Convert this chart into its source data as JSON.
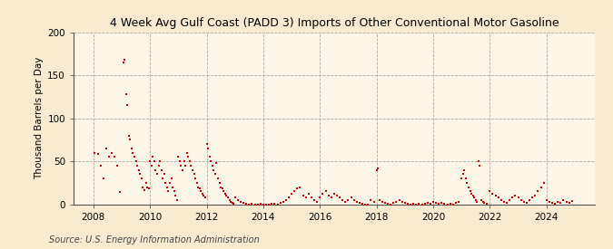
{
  "title": "4 Week Avg Gulf Coast (PADD 3) Imports of Other Conventional Motor Gasoline",
  "ylabel": "Thousand Barrels per Day",
  "source": "Source: U.S. Energy Information Administration",
  "bg_color": "#faebd0",
  "plot_bg_color": "#fdf5e6",
  "dot_color": "#cc0000",
  "ylim": [
    0,
    200
  ],
  "yticks": [
    0,
    50,
    100,
    150,
    200
  ],
  "xlim_start": 2007.3,
  "xlim_end": 2025.7,
  "xticks": [
    2008,
    2010,
    2012,
    2014,
    2016,
    2018,
    2020,
    2022,
    2024
  ],
  "data": [
    [
      2008.05,
      60
    ],
    [
      2008.15,
      58
    ],
    [
      2008.25,
      45
    ],
    [
      2008.35,
      30
    ],
    [
      2008.45,
      65
    ],
    [
      2008.55,
      55
    ],
    [
      2008.65,
      60
    ],
    [
      2008.75,
      55
    ],
    [
      2008.85,
      45
    ],
    [
      2008.95,
      14
    ],
    [
      2009.05,
      165
    ],
    [
      2009.1,
      168
    ],
    [
      2009.15,
      128
    ],
    [
      2009.2,
      115
    ],
    [
      2009.25,
      80
    ],
    [
      2009.3,
      75
    ],
    [
      2009.35,
      65
    ],
    [
      2009.4,
      60
    ],
    [
      2009.45,
      55
    ],
    [
      2009.5,
      50
    ],
    [
      2009.55,
      45
    ],
    [
      2009.6,
      40
    ],
    [
      2009.65,
      35
    ],
    [
      2009.7,
      30
    ],
    [
      2009.75,
      20
    ],
    [
      2009.8,
      16
    ],
    [
      2009.85,
      25
    ],
    [
      2009.9,
      20
    ],
    [
      2009.95,
      18
    ],
    [
      2010.0,
      50
    ],
    [
      2010.05,
      45
    ],
    [
      2010.1,
      55
    ],
    [
      2010.15,
      50
    ],
    [
      2010.2,
      40
    ],
    [
      2010.25,
      35
    ],
    [
      2010.3,
      45
    ],
    [
      2010.35,
      50
    ],
    [
      2010.4,
      40
    ],
    [
      2010.45,
      30
    ],
    [
      2010.5,
      35
    ],
    [
      2010.55,
      25
    ],
    [
      2010.6,
      20
    ],
    [
      2010.65,
      15
    ],
    [
      2010.7,
      25
    ],
    [
      2010.75,
      30
    ],
    [
      2010.8,
      20
    ],
    [
      2010.85,
      15
    ],
    [
      2010.9,
      10
    ],
    [
      2010.95,
      5
    ],
    [
      2011.0,
      55
    ],
    [
      2011.05,
      50
    ],
    [
      2011.1,
      45
    ],
    [
      2011.15,
      40
    ],
    [
      2011.2,
      50
    ],
    [
      2011.25,
      45
    ],
    [
      2011.3,
      60
    ],
    [
      2011.35,
      55
    ],
    [
      2011.4,
      50
    ],
    [
      2011.45,
      45
    ],
    [
      2011.5,
      40
    ],
    [
      2011.55,
      35
    ],
    [
      2011.6,
      30
    ],
    [
      2011.65,
      25
    ],
    [
      2011.7,
      20
    ],
    [
      2011.75,
      18
    ],
    [
      2011.8,
      15
    ],
    [
      2011.85,
      12
    ],
    [
      2011.9,
      10
    ],
    [
      2011.95,
      8
    ],
    [
      2012.0,
      70
    ],
    [
      2012.05,
      65
    ],
    [
      2012.1,
      55
    ],
    [
      2012.15,
      50
    ],
    [
      2012.2,
      45
    ],
    [
      2012.25,
      40
    ],
    [
      2012.3,
      35
    ],
    [
      2012.35,
      48
    ],
    [
      2012.4,
      30
    ],
    [
      2012.45,
      25
    ],
    [
      2012.5,
      20
    ],
    [
      2012.55,
      18
    ],
    [
      2012.6,
      15
    ],
    [
      2012.65,
      12
    ],
    [
      2012.7,
      10
    ],
    [
      2012.75,
      8
    ],
    [
      2012.8,
      5
    ],
    [
      2012.85,
      3
    ],
    [
      2012.9,
      2
    ],
    [
      2012.95,
      1
    ],
    [
      2013.0,
      8
    ],
    [
      2013.1,
      5
    ],
    [
      2013.2,
      3
    ],
    [
      2013.3,
      2
    ],
    [
      2013.4,
      1
    ],
    [
      2013.5,
      0
    ],
    [
      2013.6,
      1
    ],
    [
      2013.7,
      0
    ],
    [
      2013.8,
      0
    ],
    [
      2013.9,
      1
    ],
    [
      2014.0,
      0
    ],
    [
      2014.1,
      0
    ],
    [
      2014.2,
      0
    ],
    [
      2014.3,
      1
    ],
    [
      2014.4,
      1
    ],
    [
      2014.5,
      0
    ],
    [
      2014.6,
      2
    ],
    [
      2014.7,
      3
    ],
    [
      2014.8,
      5
    ],
    [
      2014.9,
      8
    ],
    [
      2015.0,
      12
    ],
    [
      2015.1,
      15
    ],
    [
      2015.2,
      18
    ],
    [
      2015.3,
      20
    ],
    [
      2015.4,
      10
    ],
    [
      2015.5,
      8
    ],
    [
      2015.6,
      12
    ],
    [
      2015.7,
      8
    ],
    [
      2015.8,
      5
    ],
    [
      2015.9,
      3
    ],
    [
      2016.0,
      8
    ],
    [
      2016.1,
      12
    ],
    [
      2016.2,
      15
    ],
    [
      2016.3,
      10
    ],
    [
      2016.4,
      8
    ],
    [
      2016.5,
      12
    ],
    [
      2016.6,
      10
    ],
    [
      2016.7,
      8
    ],
    [
      2016.8,
      5
    ],
    [
      2016.9,
      3
    ],
    [
      2017.0,
      5
    ],
    [
      2017.1,
      8
    ],
    [
      2017.2,
      5
    ],
    [
      2017.3,
      3
    ],
    [
      2017.4,
      2
    ],
    [
      2017.5,
      1
    ],
    [
      2017.6,
      0
    ],
    [
      2017.7,
      0
    ],
    [
      2017.8,
      5
    ],
    [
      2017.9,
      3
    ],
    [
      2018.0,
      40
    ],
    [
      2018.05,
      42
    ],
    [
      2018.1,
      5
    ],
    [
      2018.2,
      3
    ],
    [
      2018.3,
      2
    ],
    [
      2018.4,
      1
    ],
    [
      2018.5,
      0
    ],
    [
      2018.6,
      2
    ],
    [
      2018.7,
      3
    ],
    [
      2018.8,
      5
    ],
    [
      2018.9,
      3
    ],
    [
      2019.0,
      2
    ],
    [
      2019.1,
      1
    ],
    [
      2019.2,
      0
    ],
    [
      2019.3,
      1
    ],
    [
      2019.4,
      0
    ],
    [
      2019.5,
      1
    ],
    [
      2019.6,
      0
    ],
    [
      2019.7,
      1
    ],
    [
      2019.8,
      2
    ],
    [
      2019.9,
      1
    ],
    [
      2020.0,
      3
    ],
    [
      2020.1,
      2
    ],
    [
      2020.2,
      1
    ],
    [
      2020.3,
      2
    ],
    [
      2020.4,
      1
    ],
    [
      2020.5,
      0
    ],
    [
      2020.6,
      1
    ],
    [
      2020.7,
      0
    ],
    [
      2020.8,
      2
    ],
    [
      2020.9,
      3
    ],
    [
      2021.0,
      30
    ],
    [
      2021.05,
      35
    ],
    [
      2021.1,
      40
    ],
    [
      2021.15,
      30
    ],
    [
      2021.2,
      25
    ],
    [
      2021.25,
      20
    ],
    [
      2021.3,
      15
    ],
    [
      2021.35,
      12
    ],
    [
      2021.4,
      10
    ],
    [
      2021.45,
      8
    ],
    [
      2021.5,
      5
    ],
    [
      2021.55,
      3
    ],
    [
      2021.6,
      50
    ],
    [
      2021.65,
      45
    ],
    [
      2021.7,
      5
    ],
    [
      2021.75,
      3
    ],
    [
      2021.8,
      2
    ],
    [
      2021.9,
      1
    ],
    [
      2022.0,
      15
    ],
    [
      2022.1,
      12
    ],
    [
      2022.2,
      10
    ],
    [
      2022.3,
      8
    ],
    [
      2022.4,
      5
    ],
    [
      2022.5,
      3
    ],
    [
      2022.6,
      2
    ],
    [
      2022.7,
      5
    ],
    [
      2022.8,
      8
    ],
    [
      2022.9,
      10
    ],
    [
      2023.0,
      8
    ],
    [
      2023.1,
      5
    ],
    [
      2023.2,
      3
    ],
    [
      2023.3,
      2
    ],
    [
      2023.4,
      5
    ],
    [
      2023.5,
      8
    ],
    [
      2023.6,
      10
    ],
    [
      2023.7,
      15
    ],
    [
      2023.8,
      20
    ],
    [
      2023.9,
      25
    ],
    [
      2024.0,
      5
    ],
    [
      2024.1,
      3
    ],
    [
      2024.2,
      2
    ],
    [
      2024.3,
      1
    ],
    [
      2024.4,
      3
    ],
    [
      2024.5,
      2
    ],
    [
      2024.6,
      5
    ],
    [
      2024.7,
      3
    ],
    [
      2024.8,
      2
    ],
    [
      2024.9,
      4
    ]
  ]
}
